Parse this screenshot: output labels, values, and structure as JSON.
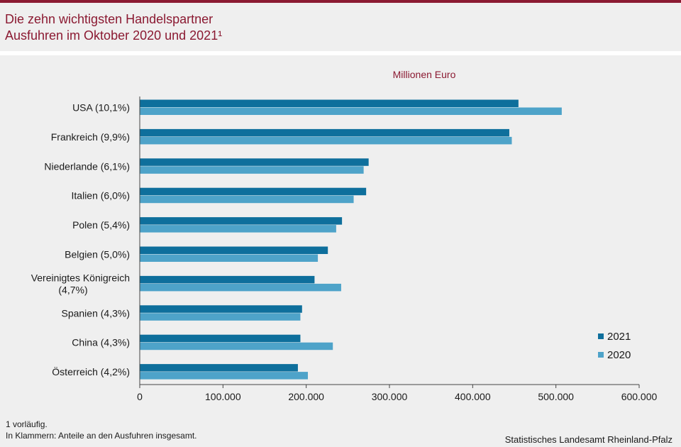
{
  "header": {
    "title_line1": "Die zehn wichtigsten Handelspartner",
    "title_line2": "Ausfuhren im Oktober 2020 und 2021¹"
  },
  "colors": {
    "accent": "#8b1a32",
    "series_2021": "#0e6f9c",
    "series_2020": "#4ea3c9"
  },
  "chart_data": {
    "type": "bar",
    "orientation": "horizontal",
    "unit_label": "Millionen Euro",
    "categories": [
      "USA (10,1%)",
      "Frankreich (9,9%)",
      "Niederlande (6,1%)",
      "Italien (6,0%)",
      "Polen (5,4%)",
      "Belgien (5,0%)",
      "Vereinigtes Königreich (4,7%)",
      "Spanien (4,3%)",
      "China (4,3%)",
      "Österreich (4,2%)"
    ],
    "series": [
      {
        "name": "2021",
        "values": [
          455000,
          444000,
          275000,
          272000,
          243000,
          226000,
          210000,
          195000,
          193000,
          190000
        ]
      },
      {
        "name": "2020",
        "values": [
          507000,
          447000,
          269000,
          257000,
          236000,
          214000,
          242000,
          193000,
          232000,
          202000
        ]
      }
    ],
    "x_ticks": [
      "0",
      "100.000",
      "200.000",
      "300.000",
      "400.000",
      "500.000",
      "600.000"
    ],
    "xlim": [
      0,
      600000
    ],
    "legend_position": "bottom-right",
    "grid": false
  },
  "footnotes": {
    "note1": "1 vorläufig.",
    "note2": "In Klammern: Anteile an den Ausfuhren insgesamt."
  },
  "source": "Statistisches Landesamt Rheinland-Pfalz"
}
